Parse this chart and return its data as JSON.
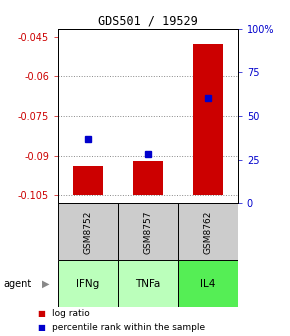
{
  "title": "GDS501 / 19529",
  "samples": [
    "GSM8752",
    "GSM8757",
    "GSM8762"
  ],
  "agents": [
    "IFNg",
    "TNFa",
    "IL4"
  ],
  "log_ratios": [
    -0.094,
    -0.092,
    -0.048
  ],
  "percentile_ranks": [
    37,
    28,
    60
  ],
  "ylim_left": [
    -0.108,
    -0.042
  ],
  "ylim_right": [
    0,
    100
  ],
  "yticks_left": [
    -0.105,
    -0.09,
    -0.075,
    -0.06,
    -0.045
  ],
  "yticks_right": [
    0,
    25,
    50,
    75,
    100
  ],
  "ytick_labels_left": [
    "-0.105",
    "-0.09",
    "-0.075",
    "-0.06",
    "-0.045"
  ],
  "ytick_labels_right": [
    "0",
    "25",
    "50",
    "75",
    "100%"
  ],
  "bar_color": "#cc0000",
  "dot_color": "#0000cc",
  "sample_box_color": "#cccccc",
  "agent_box_colors": [
    "#bbffbb",
    "#bbffbb",
    "#55ee55"
  ],
  "grid_color": "#888888",
  "bar_width": 0.5,
  "bar_bottom": -0.105
}
